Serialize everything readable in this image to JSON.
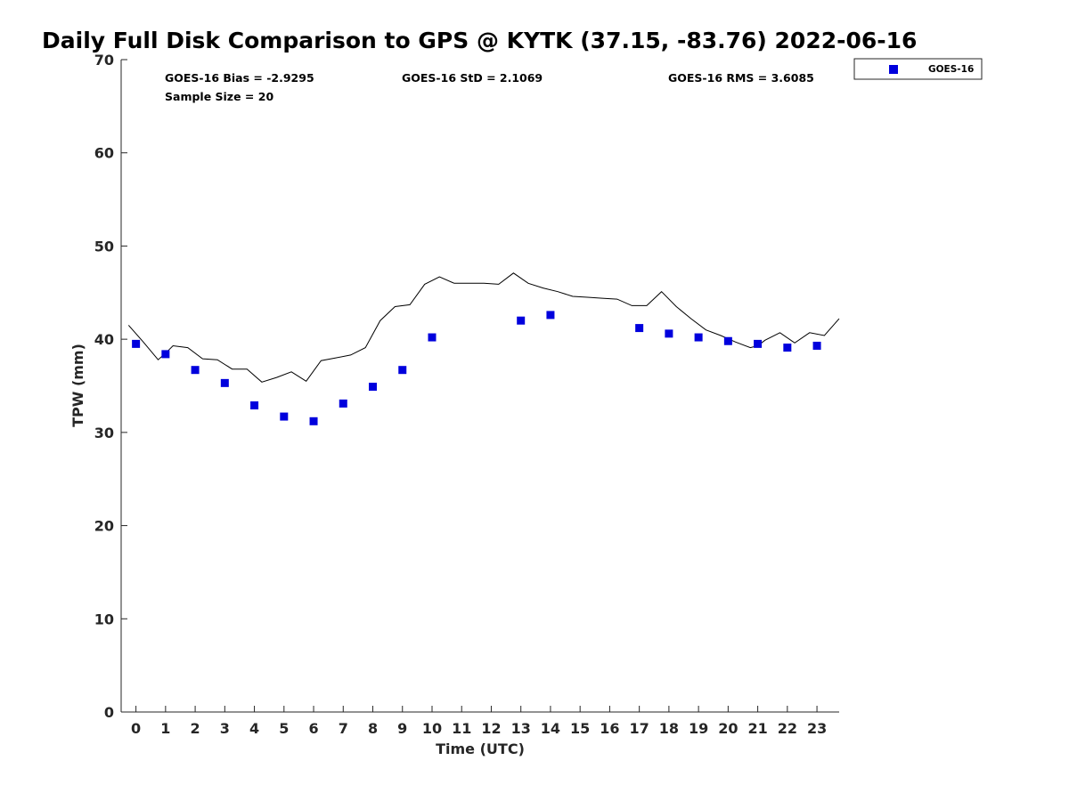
{
  "chart_data": {
    "type": "scatter",
    "title": "Daily Full Disk Comparison to GPS @ KYTK (37.15, -83.76) 2022-06-16",
    "xlabel": "Time (UTC)",
    "ylabel": "TPW (mm)",
    "xlim": [
      -0.5,
      23.75
    ],
    "ylim": [
      0,
      70
    ],
    "x_ticks": [
      0,
      1,
      2,
      3,
      4,
      5,
      6,
      7,
      8,
      9,
      10,
      11,
      12,
      13,
      14,
      15,
      16,
      17,
      18,
      19,
      20,
      21,
      22,
      23
    ],
    "y_ticks": [
      0,
      10,
      20,
      30,
      40,
      50,
      60,
      70
    ],
    "stats": {
      "bias": "GOES-16 Bias = -2.9295",
      "std": "GOES-16 StD = 2.1069",
      "rms": "GOES-16 RMS = 3.6085",
      "sample_size": "Sample Size = 20"
    },
    "legend": {
      "label": "GOES-16",
      "placement": "outside-top-right"
    },
    "grid": false,
    "series": [
      {
        "name": "GOES-16",
        "kind": "scatter",
        "color": "#0000dd",
        "marker": "square",
        "x": [
          0,
          1,
          2,
          3,
          4,
          5,
          6,
          7,
          8,
          9,
          10,
          13,
          14,
          17,
          18,
          19,
          20,
          21,
          22,
          23
        ],
        "y": [
          39.5,
          38.4,
          36.7,
          35.3,
          32.9,
          31.7,
          31.2,
          33.1,
          34.9,
          36.7,
          40.2,
          42.0,
          42.6,
          41.2,
          40.6,
          40.2,
          39.8,
          39.5,
          39.1,
          39.3
        ]
      },
      {
        "kind": "line",
        "color": "#000000",
        "x": [
          -0.25,
          0.25,
          0.75,
          1.0,
          1.25,
          1.75,
          2.25,
          2.75,
          3.25,
          3.75,
          4.25,
          4.75,
          5.25,
          5.75,
          6.25,
          6.75,
          7.25,
          7.75,
          8.25,
          8.75,
          9.25,
          9.75,
          10.25,
          10.75,
          11.25,
          11.75,
          12.25,
          12.75,
          13.25,
          13.75,
          14.25,
          14.75,
          15.25,
          15.75,
          16.25,
          16.75,
          17.25,
          17.75,
          18.25,
          18.75,
          19.25,
          19.75,
          20.25,
          20.75,
          21.0,
          21.25,
          21.75,
          22.25,
          22.75,
          23.25,
          23.75
        ],
        "y": [
          41.5,
          39.7,
          37.8,
          38.5,
          39.3,
          39.1,
          37.9,
          37.8,
          36.8,
          36.8,
          35.4,
          35.9,
          36.5,
          35.5,
          37.7,
          38.0,
          38.3,
          39.1,
          42.0,
          43.5,
          43.7,
          45.9,
          46.7,
          46.0,
          46.0,
          46.0,
          45.9,
          47.1,
          46.0,
          45.5,
          45.1,
          44.6,
          44.5,
          44.4,
          44.3,
          43.6,
          43.6,
          45.1,
          43.5,
          42.2,
          41.0,
          40.4,
          39.7,
          39.1,
          39.3,
          39.9,
          40.7,
          39.6,
          40.7,
          40.4,
          42.2
        ]
      }
    ]
  }
}
